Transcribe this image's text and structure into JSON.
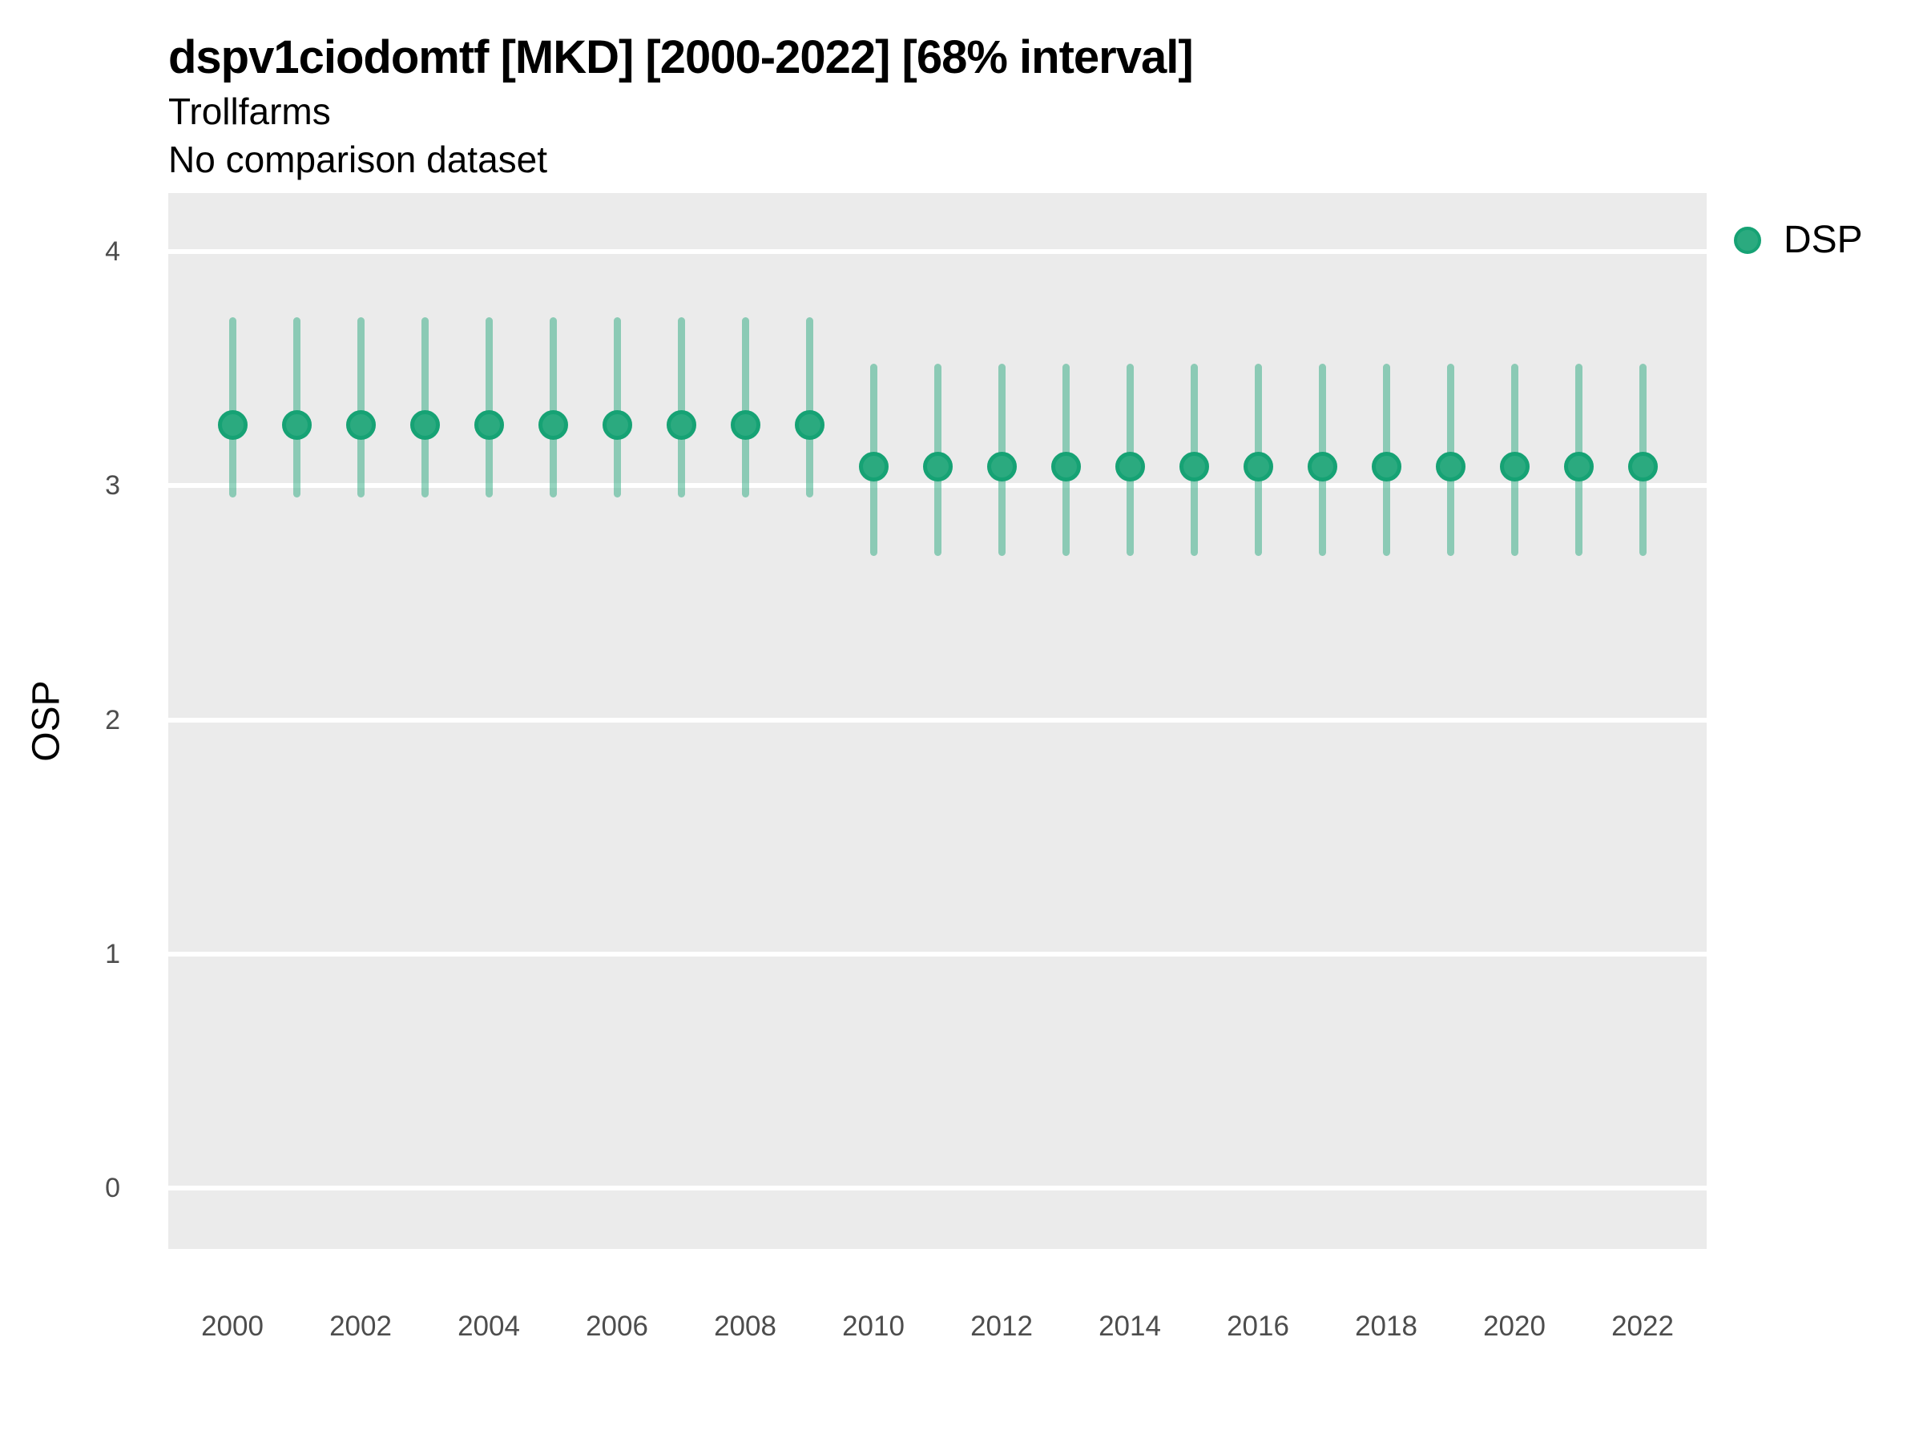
{
  "header": {
    "title": "dspv1ciodomtf [MKD] [2000-2022] [68% interval]",
    "subtitle": "Trollfarms",
    "note": "No comparison dataset"
  },
  "legend": {
    "label": "DSP",
    "marker_icon": "circle-icon"
  },
  "colors": {
    "point_fill": "#2BAA7F",
    "point_stroke": "#16A274",
    "interval_bar": "rgba(43,170,127,0.5)",
    "panel_background": "#EBEBEB",
    "gridline": "#FFFFFF",
    "tick_text": "#4D4D4D"
  },
  "chart_data": {
    "type": "scatter",
    "subtype": "pointrange",
    "title": "dspv1ciodomtf [MKD] [2000-2022] [68% interval]",
    "subtitle": "Trollfarms",
    "note": "No comparison dataset",
    "xlabel": "",
    "ylabel": "OSP",
    "interval_level": "68%",
    "xlim": [
      1999,
      2023
    ],
    "ylim": [
      -0.26,
      4.25
    ],
    "x_ticks": [
      2000,
      2002,
      2004,
      2006,
      2008,
      2010,
      2012,
      2014,
      2016,
      2018,
      2020,
      2022
    ],
    "y_ticks": [
      0,
      1,
      2,
      3,
      4
    ],
    "grid": "horizontal-major-only",
    "legend_position": "right",
    "series": [
      {
        "name": "DSP",
        "x": [
          2000,
          2001,
          2002,
          2003,
          2004,
          2005,
          2006,
          2007,
          2008,
          2009,
          2010,
          2011,
          2012,
          2013,
          2014,
          2015,
          2016,
          2017,
          2018,
          2019,
          2020,
          2021,
          2022
        ],
        "y": [
          3.26,
          3.26,
          3.26,
          3.26,
          3.26,
          3.26,
          3.26,
          3.26,
          3.26,
          3.26,
          3.08,
          3.08,
          3.08,
          3.08,
          3.08,
          3.08,
          3.08,
          3.08,
          3.08,
          3.08,
          3.08,
          3.08,
          3.08
        ],
        "y_lo": [
          2.95,
          2.95,
          2.95,
          2.95,
          2.95,
          2.95,
          2.95,
          2.95,
          2.95,
          2.95,
          2.7,
          2.7,
          2.7,
          2.7,
          2.7,
          2.7,
          2.7,
          2.7,
          2.7,
          2.7,
          2.7,
          2.7,
          2.7
        ],
        "y_hi": [
          3.72,
          3.72,
          3.72,
          3.72,
          3.72,
          3.72,
          3.72,
          3.72,
          3.72,
          3.72,
          3.52,
          3.52,
          3.52,
          3.52,
          3.52,
          3.52,
          3.52,
          3.52,
          3.52,
          3.52,
          3.52,
          3.52,
          3.52
        ]
      }
    ]
  }
}
